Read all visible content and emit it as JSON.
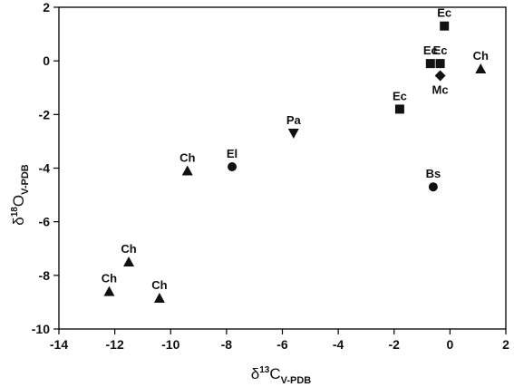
{
  "chart_data": {
    "type": "scatter",
    "title": "",
    "xlabel": {
      "prefix": "δ",
      "sup": "13",
      "main": "C",
      "sub": "V-PDB"
    },
    "ylabel": {
      "prefix": "δ",
      "sup": "18",
      "main": "O",
      "sub": "V-PDB"
    },
    "xlim": [
      -14,
      2
    ],
    "ylim": [
      -10,
      2
    ],
    "xticks": [
      "-14",
      "-12",
      "-10",
      "-8",
      "-6",
      "-4",
      "-2",
      "0",
      "2"
    ],
    "yticks": [
      "-10",
      "-8",
      "-6",
      "-4",
      "-2",
      "0",
      "2"
    ],
    "grid": false,
    "points": [
      {
        "label": "Ec",
        "x": -0.2,
        "y": 1.3,
        "marker": "square"
      },
      {
        "label": "Ec",
        "x": -0.7,
        "y": -0.1,
        "marker": "square"
      },
      {
        "label": "Ec",
        "x": -0.35,
        "y": -0.1,
        "marker": "square"
      },
      {
        "label": "Ec",
        "x": -1.8,
        "y": -1.8,
        "marker": "square"
      },
      {
        "label": "Mc",
        "x": -0.35,
        "y": -0.55,
        "marker": "diamond"
      },
      {
        "label": "Ch",
        "x": 1.1,
        "y": -0.3,
        "marker": "triangle-up"
      },
      {
        "label": "Pa",
        "x": -5.6,
        "y": -2.7,
        "marker": "triangle-down"
      },
      {
        "label": "El",
        "x": -7.8,
        "y": -3.95,
        "marker": "circle"
      },
      {
        "label": "Ch",
        "x": -9.4,
        "y": -4.1,
        "marker": "triangle-up"
      },
      {
        "label": "Bs",
        "x": -0.6,
        "y": -4.7,
        "marker": "circle"
      },
      {
        "label": "Ch",
        "x": -11.5,
        "y": -7.5,
        "marker": "triangle-up"
      },
      {
        "label": "Ch",
        "x": -12.2,
        "y": -8.6,
        "marker": "triangle-up"
      },
      {
        "label": "Ch",
        "x": -10.4,
        "y": -8.85,
        "marker": "triangle-up"
      }
    ]
  }
}
